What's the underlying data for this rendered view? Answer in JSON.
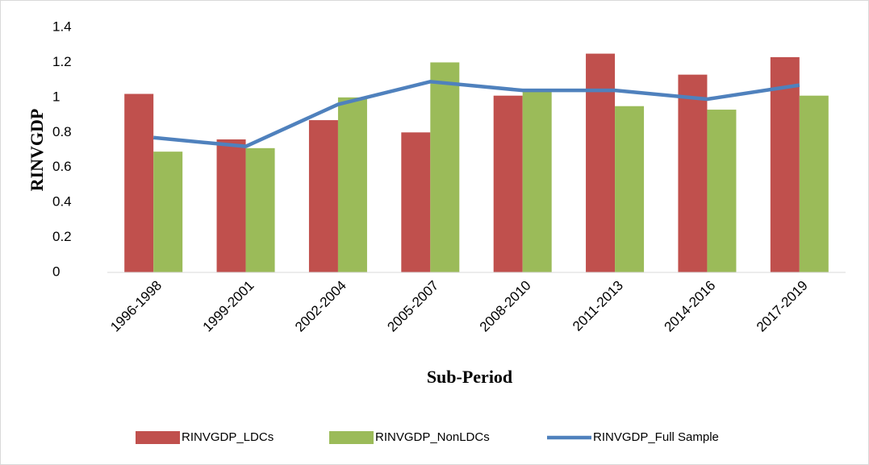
{
  "chart_data": {
    "type": "bar_line",
    "categories": [
      "1996-1998",
      "1999-2001",
      "2002-2004",
      "2005-2007",
      "2008-2010",
      "2011-2013",
      "2014-2016",
      "2017-2019"
    ],
    "series": [
      {
        "name": "RINVGDP_LDCs",
        "color": "#c0504d",
        "kind": "bar",
        "values": [
          1.02,
          0.76,
          0.87,
          0.8,
          1.01,
          1.25,
          1.13,
          1.23
        ]
      },
      {
        "name": "RINVGDP_NonLDCs",
        "color": "#9bbb59",
        "kind": "bar",
        "values": [
          0.69,
          0.71,
          1.0,
          1.2,
          1.05,
          0.95,
          0.93,
          1.01
        ]
      },
      {
        "name": "RINVGDP_Full Sample",
        "color": "#4f81bd",
        "kind": "line",
        "values": [
          0.77,
          0.72,
          0.96,
          1.09,
          1.04,
          1.04,
          0.99,
          1.07
        ]
      }
    ],
    "ylabel": "RINVGDP",
    "xlabel": "Sub-Period",
    "ylim": [
      0,
      1.4
    ],
    "yticks": [
      0,
      0.2,
      0.4,
      0.6,
      0.8,
      1,
      1.2,
      1.4
    ],
    "legend": "bottom"
  }
}
